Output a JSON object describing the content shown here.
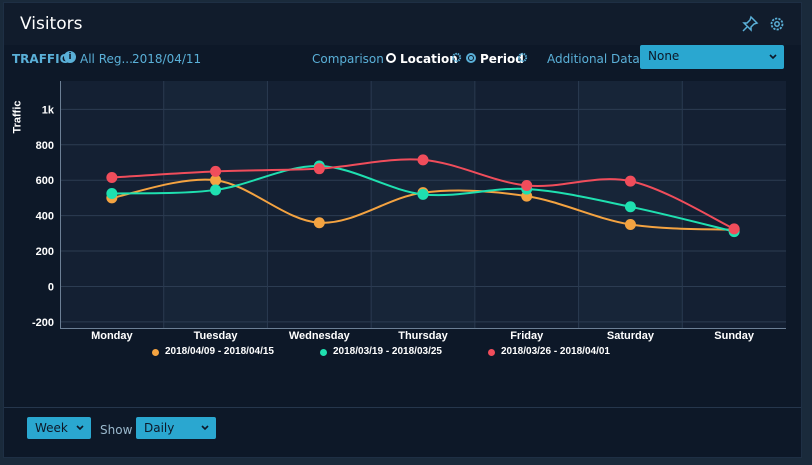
{
  "header": {
    "title": "Visitors",
    "pin_icon": "pin-icon",
    "settings_icon": "gear-icon"
  },
  "toolbar": {
    "traffic_label": "TRAFFIC",
    "region_label": "All Reg...",
    "date_label": "2018/04/11",
    "comparison_label": "Comparison",
    "location_label": "Location",
    "period_label": "Period",
    "additional_label": "Additional Data",
    "additional_value": "None"
  },
  "footer": {
    "range_value": "Week",
    "show_label": "Show",
    "show_value": "Daily"
  },
  "colors": {
    "orange": "#f4a341",
    "teal": "#1fe0b0",
    "red": "#f04d5b",
    "accent": "#2aa7d0"
  },
  "chart_data": {
    "type": "line",
    "ylabel": "Traffic",
    "ylim": [
      -240,
      1160
    ],
    "yticks": [
      -200,
      0,
      200,
      400,
      600,
      800,
      1000
    ],
    "ytick_labels": [
      "-200",
      "0",
      "200",
      "400",
      "600",
      "800",
      "1k"
    ],
    "categories": [
      "Monday",
      "Tuesday",
      "Wednesday",
      "Thursday",
      "Friday",
      "Saturday",
      "Sunday"
    ],
    "series": [
      {
        "name": "2018/04/09 - 2018/04/15",
        "color": "#f4a341",
        "values": [
          500,
          600,
          360,
          530,
          510,
          350,
          320
        ]
      },
      {
        "name": "2018/03/19 - 2018/03/25",
        "color": "#1fe0b0",
        "values": [
          525,
          545,
          680,
          520,
          550,
          450,
          310
        ]
      },
      {
        "name": "2018/03/26 - 2018/04/01",
        "color": "#f04d5b",
        "values": [
          615,
          650,
          665,
          715,
          570,
          595,
          325
        ]
      }
    ]
  }
}
